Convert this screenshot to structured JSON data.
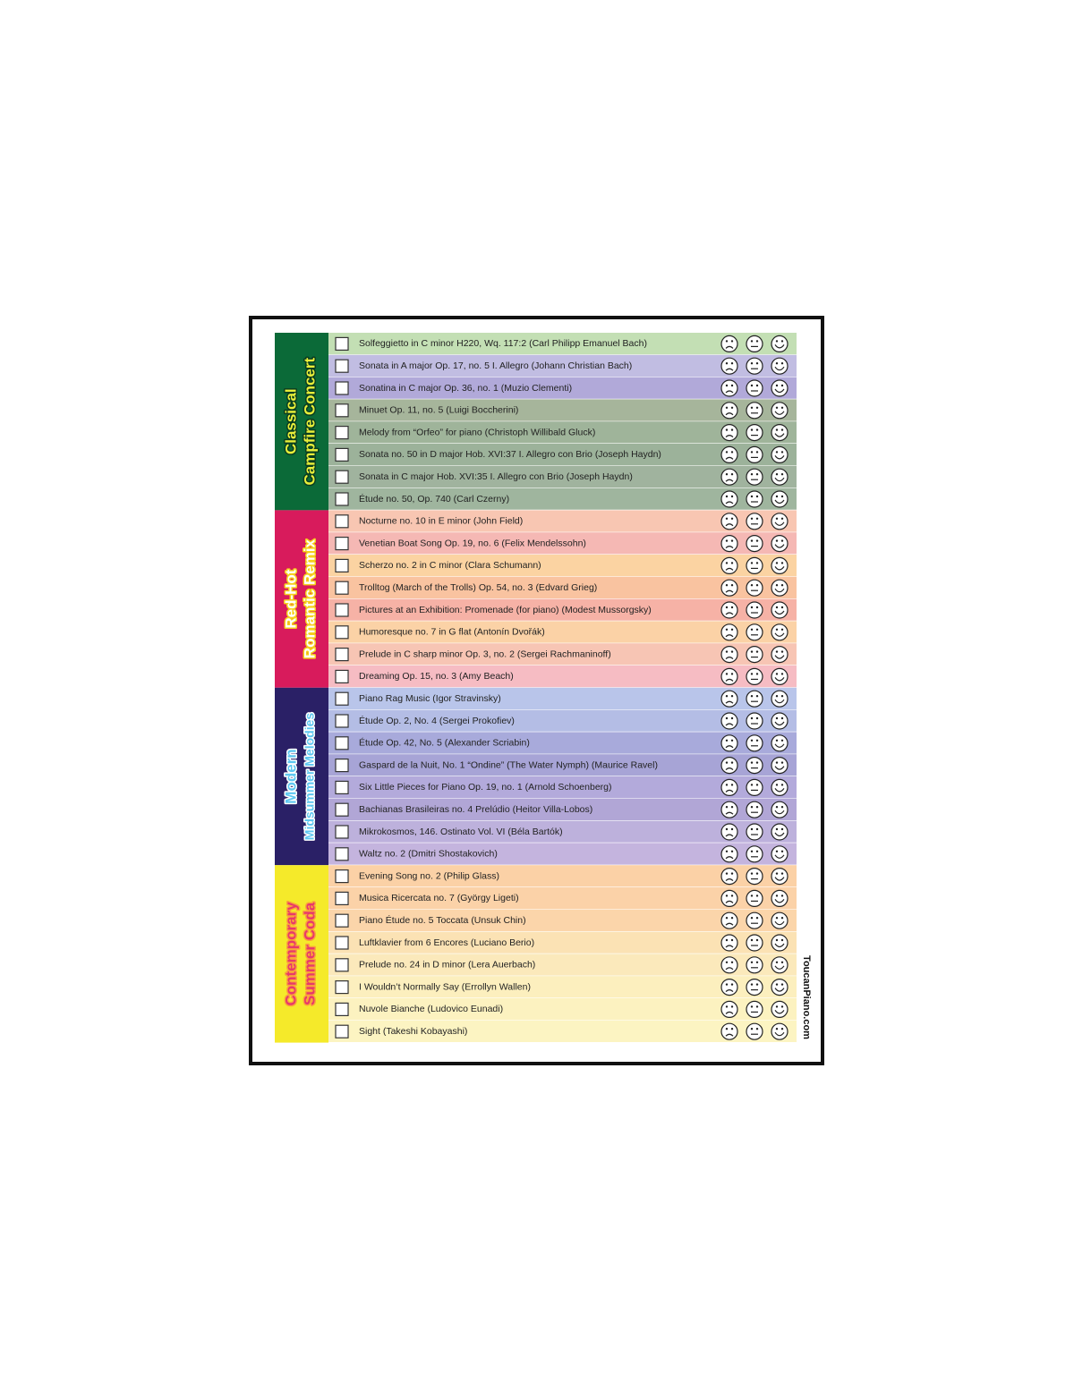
{
  "sections": [
    {
      "title": [
        "Classical",
        "Campfire Concert"
      ],
      "pieces": [
        "Solfeggietto in C minor H220, Wq. 117:2 (Carl Philipp Emanuel Bach)",
        "Sonata in A major Op. 17, no. 5  I. Allegro (Johann Christian Bach)",
        "Sonatina in C major Op. 36, no. 1 (Muzio Clementi)",
        "Minuet Op. 11, no. 5 (Luigi Boccherini)",
        "Melody from “Orfeo” for piano (Christoph Willibald Gluck)",
        "Sonata no. 50 in D major Hob. XVI:37  I. Allegro con Brio (Joseph Haydn)",
        "Sonata in C major Hob. XVI:35  I. Allegro con Brio (Joseph Haydn)",
        "Étude no. 50, Op. 740 (Carl Czerny)"
      ]
    },
    {
      "title": [
        "Red-Hot",
        "Romantic Remix"
      ],
      "pieces": [
        "Nocturne no. 10 in E minor (John Field)",
        "Venetian Boat Song Op. 19, no. 6 (Felix Mendelssohn)",
        "Scherzo no. 2 in C minor (Clara Schumann)",
        "Trolltog (March of the Trolls) Op. 54, no. 3 (Edvard Grieg)",
        "Pictures at an Exhibition: Promenade (for piano) (Modest Mussorgsky)",
        "Humoresque no. 7 in G flat (Antonín Dvořák)",
        "Prelude in C sharp minor Op. 3, no. 2 (Sergei Rachmaninoff)",
        "Dreaming Op. 15, no. 3 (Amy Beach)"
      ]
    },
    {
      "title": [
        "Modern",
        "Midsummer Melodies"
      ],
      "pieces": [
        "Piano Rag Music (Igor Stravinsky)",
        "Étude Op. 2, No. 4 (Sergei Prokofiev)",
        "Étude Op. 42, No. 5 (Alexander Scriabin)",
        "Gaspard de la Nuit, No. 1 “Ondine” (The Water Nymph) (Maurice Ravel)",
        "Six Little Pieces for Piano Op. 19, no. 1 (Arnold Schoenberg)",
        "Bachianas Brasileiras no. 4 Prelúdio (Heitor Villa-Lobos)",
        "Mikrokosmos, 146. Ostinato Vol. VI (Béla Bartók)",
        "Waltz no. 2 (Dmitri Shostakovich)"
      ]
    },
    {
      "title": [
        "Contemporary",
        "Summer Coda"
      ],
      "pieces": [
        "Evening Song no. 2 (Philip Glass)",
        "Musica Ricercata no. 7 (György Ligeti)",
        "Piano Étude no. 5 Toccata (Unsuk Chin)",
        "Luftklavier from 6 Encores (Luciano Berio)",
        "Prelude no. 24 in D minor (Lera Auerbach)",
        "I Wouldn’t Normally Say (Errollyn Wallen)",
        "Nuvole Bianche (Ludovico Eunadi)",
        "Sight (Takeshi Kobayashi)"
      ]
    }
  ],
  "footer": {
    "site": "ToucanPiano.com"
  }
}
